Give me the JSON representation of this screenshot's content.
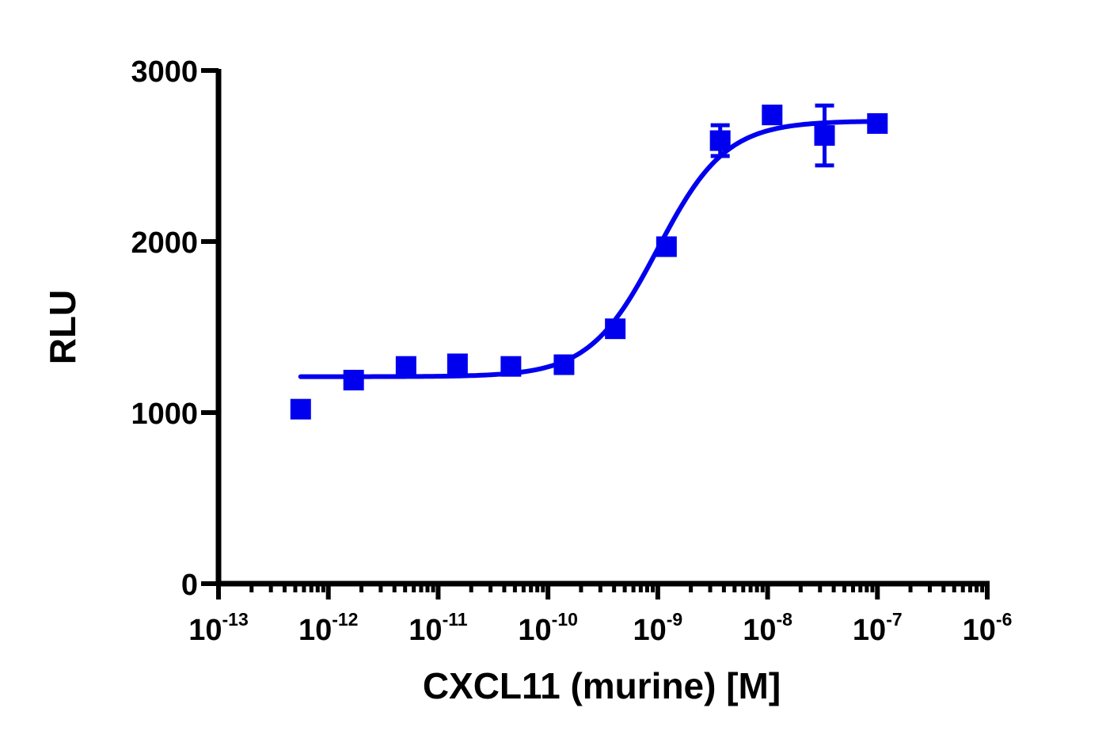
{
  "chart_data": {
    "type": "scatter",
    "title": "",
    "xlabel": "CXCL11 (murine) [M]",
    "ylabel": "RLU",
    "x_scale": "log",
    "xlim": [
      1e-13,
      1e-06
    ],
    "ylim": [
      0,
      3000
    ],
    "y_ticks": [
      "0",
      "1000",
      "2000",
      "3000"
    ],
    "x_ticks": [
      {
        "base": "10",
        "exp": "-13",
        "value": 1e-13
      },
      {
        "base": "10",
        "exp": "-12",
        "value": 1e-12
      },
      {
        "base": "10",
        "exp": "-11",
        "value": 1e-11
      },
      {
        "base": "10",
        "exp": "-10",
        "value": 1e-10
      },
      {
        "base": "10",
        "exp": "-9",
        "value": 1e-09
      },
      {
        "base": "10",
        "exp": "-8",
        "value": 1e-08
      },
      {
        "base": "10",
        "exp": "-7",
        "value": 1e-07
      },
      {
        "base": "10",
        "exp": "-6",
        "value": 1e-06
      }
    ],
    "grid": false,
    "legend": "none",
    "color": "#0000ee",
    "points": [
      {
        "x": 5.6e-13,
        "y": 1020,
        "err": 0
      },
      {
        "x": 1.7e-12,
        "y": 1190,
        "err": 0
      },
      {
        "x": 5.1e-12,
        "y": 1270,
        "err": 0
      },
      {
        "x": 1.5e-11,
        "y": 1285,
        "err": 0
      },
      {
        "x": 4.6e-11,
        "y": 1270,
        "err": 0
      },
      {
        "x": 1.4e-10,
        "y": 1280,
        "err": 0
      },
      {
        "x": 4.1e-10,
        "y": 1490,
        "err": 40
      },
      {
        "x": 1.2e-09,
        "y": 1970,
        "err": 0
      },
      {
        "x": 3.7e-09,
        "y": 2590,
        "err": 90
      },
      {
        "x": 1.1e-08,
        "y": 2740,
        "err": 0
      },
      {
        "x": 3.3e-08,
        "y": 2620,
        "err": 175
      },
      {
        "x": 1e-07,
        "y": 2690,
        "err": 0
      }
    ],
    "fit": {
      "model": "4PL",
      "bottom": 1210,
      "top": 2705,
      "ec50": 1e-09,
      "hill": 1.4,
      "x_range": [
        5.6e-13,
        1e-07
      ]
    }
  }
}
